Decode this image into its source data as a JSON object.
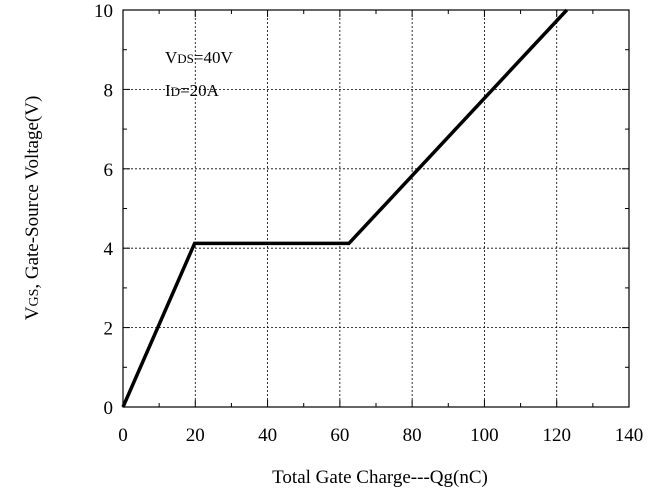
{
  "chart_data": {
    "type": "line",
    "xlabel": "Total Gate Charge---Qg(nC)",
    "ylabel": {
      "symbol_main": "V",
      "symbol_sub": "GS",
      "rest": ", Gate-Source Voltage(V)"
    },
    "xlim": [
      0,
      140
    ],
    "ylim": [
      0,
      10
    ],
    "x_ticks": [
      0,
      20,
      40,
      60,
      80,
      100,
      120,
      140
    ],
    "y_ticks": [
      0,
      2,
      4,
      6,
      8,
      10
    ],
    "x_minor_ticks": [
      10,
      30,
      50,
      70,
      90,
      110,
      130
    ],
    "y_minor_ticks": [
      1,
      3,
      5,
      7,
      9
    ],
    "grid": true,
    "annotations": [
      {
        "main": "V",
        "sub": "DS",
        "rest": "=40V"
      },
      {
        "main": "I",
        "sub": "D",
        "rest": "=20A"
      }
    ],
    "series": [
      {
        "x": [
          0,
          19.8,
          62.5,
          122.8
        ],
        "y": [
          0,
          4.12,
          4.12,
          10
        ]
      }
    ]
  }
}
